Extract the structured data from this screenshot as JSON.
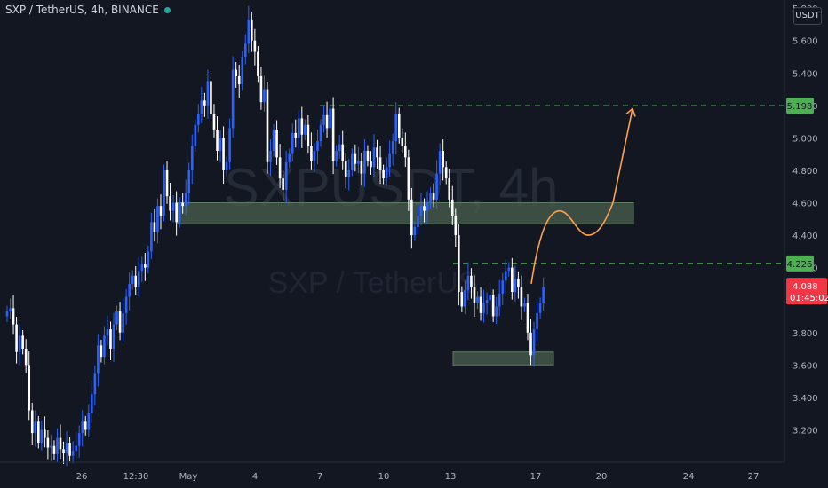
{
  "header": {
    "title": "SXP / TetherUS, 4h, BINANCE",
    "currency": "USDT"
  },
  "watermark": {
    "symbol": "SXPUSDT, 4h",
    "name": "SXP / TetherUS"
  },
  "colors": {
    "background": "#131722",
    "up_candle": "#2962ff",
    "down_candle": "#ffffff",
    "target_line": "#4caf50",
    "current_price": "#f23645",
    "zone_fill": "#4b614f",
    "projection": "#ffa24d",
    "axis_text": "#b2b5be"
  },
  "chart_data": {
    "type": "candlestick",
    "title": "SXP / TetherUS, 4h, BINANCE",
    "ylabel": "USDT",
    "ylim": [
      3.0,
      5.85
    ],
    "y_ticks": [
      "3.200",
      "3.400",
      "3.600",
      "3.800",
      "4.000",
      "4.200",
      "4.400",
      "4.600",
      "4.800",
      "5.000",
      "5.200",
      "5.400",
      "5.600",
      "5.800"
    ],
    "x_ticks": [
      "26",
      "12:30",
      "May",
      "4",
      "7",
      "10",
      "13",
      "17",
      "20",
      "24",
      "27"
    ],
    "grid": false,
    "price_levels": [
      {
        "label": "5.198",
        "value": 5.198,
        "style": "dashed"
      },
      {
        "label": "4.226",
        "value": 4.226,
        "style": "dashed"
      }
    ],
    "current_price": {
      "value": "4.088",
      "countdown": "01:45:02"
    },
    "zones": [
      {
        "from_date": "Apr 29",
        "to_date": "May 18",
        "low": 4.47,
        "high": 4.6
      },
      {
        "from_date": "May 13",
        "to_date": "May 15",
        "low": 3.6,
        "high": 3.68
      }
    ],
    "projection_path": [
      4.1,
      4.55,
      4.4,
      4.6,
      5.18
    ],
    "series": [
      {
        "closes": [
          3.93,
          3.95,
          3.85,
          3.68,
          3.78,
          3.7,
          3.6,
          3.32,
          3.18,
          3.25,
          3.12,
          3.2,
          3.15,
          3.09,
          3.1,
          3.05,
          3.15,
          3.08,
          3.06,
          3.12,
          3.04,
          3.07,
          3.1,
          3.18,
          3.25,
          3.2,
          3.3,
          3.42,
          3.55,
          3.72,
          3.65,
          3.78,
          3.82,
          3.7,
          3.85,
          3.93,
          3.8,
          3.92,
          4.02,
          4.1,
          4.15,
          4.08,
          4.18,
          4.22,
          4.2,
          4.3,
          4.48,
          4.42,
          4.58,
          4.52,
          4.8,
          4.64,
          4.55,
          4.6,
          4.48,
          4.6,
          4.58,
          4.66,
          4.8,
          4.95,
          5.08,
          5.15,
          5.23,
          5.2,
          5.35,
          5.15,
          5.05,
          4.92,
          5.0,
          4.8,
          4.85,
          5.06,
          5.42,
          5.38,
          5.33,
          5.5,
          5.58,
          5.73,
          5.6,
          5.53,
          5.38,
          5.22,
          5.3,
          4.85,
          4.92,
          5.05,
          4.88,
          4.75,
          4.68,
          4.85,
          4.9,
          5.03,
          5.0,
          5.12,
          5.02,
          5.08,
          4.95,
          4.86,
          4.92,
          4.98,
          5.08,
          5.14,
          5.06,
          5.18,
          4.86,
          4.92,
          4.96,
          4.86,
          4.76,
          4.8,
          4.9,
          4.84,
          4.86,
          4.78,
          4.92,
          4.86,
          4.82,
          4.94,
          4.88,
          4.8,
          4.75,
          4.82,
          4.9,
          4.98,
          5.15,
          5.0,
          4.95,
          4.88,
          4.62,
          4.4,
          4.45,
          4.52,
          4.58,
          4.55,
          4.6,
          4.66,
          4.62,
          4.78,
          4.92,
          4.82,
          4.75,
          4.62,
          4.52,
          4.4,
          4.05,
          3.96,
          4.06,
          4.15,
          4.08,
          3.98,
          4.02,
          3.92,
          3.98,
          4.0,
          4.03,
          3.9,
          3.96,
          4.04,
          4.12,
          4.18,
          4.2,
          4.05,
          4.13,
          4.08,
          3.96,
          3.98,
          3.8,
          3.66,
          3.82,
          3.92,
          3.98,
          4.08
        ]
      }
    ]
  }
}
